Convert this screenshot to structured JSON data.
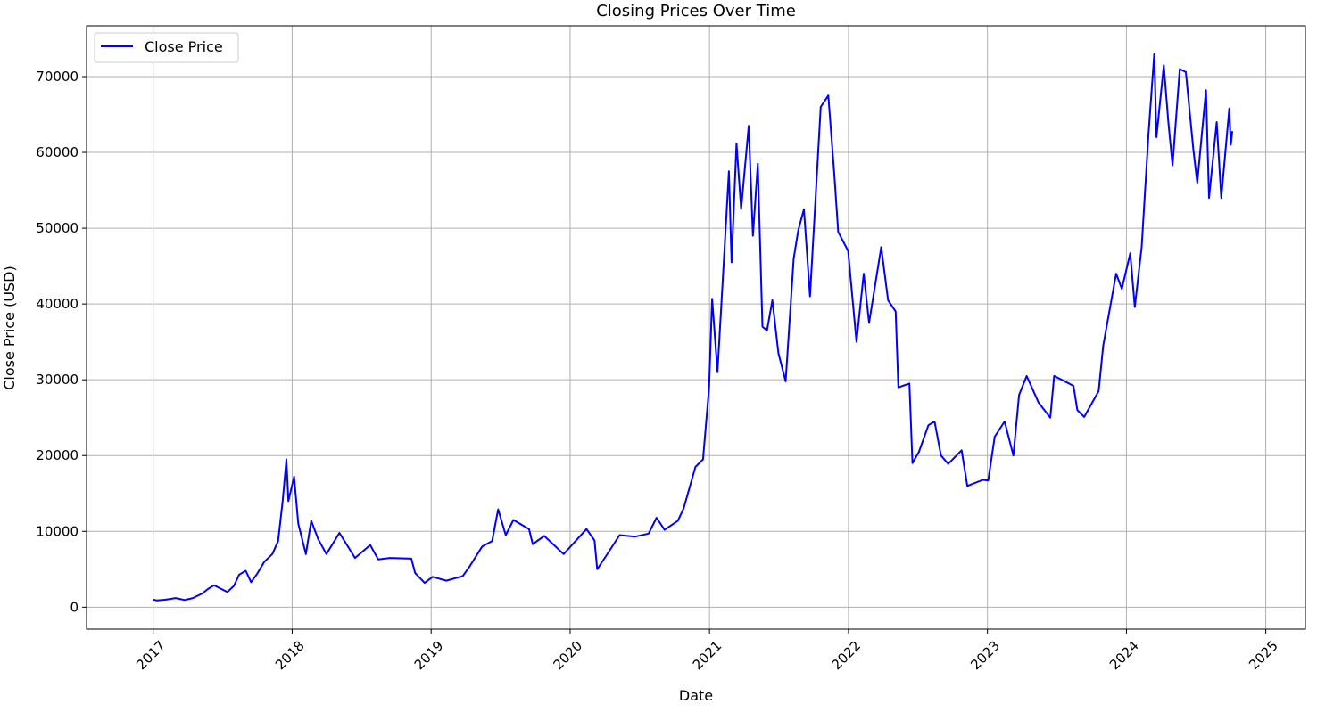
{
  "chart_data": {
    "type": "line",
    "title": "Closing Prices Over Time",
    "xlabel": "Date",
    "ylabel": "Close Price (USD)",
    "x_range": [
      "2016-07-10",
      "2025-04-15"
    ],
    "ylim": [
      -2900,
      76700
    ],
    "xticks": [
      "2017",
      "2018",
      "2019",
      "2020",
      "2021",
      "2022",
      "2023",
      "2024",
      "2025"
    ],
    "yticks": [
      0,
      10000,
      20000,
      30000,
      40000,
      50000,
      60000,
      70000
    ],
    "grid": true,
    "legend_position": "upper-left",
    "series": [
      {
        "name": "Close Price",
        "color": "#0000ff",
        "points": [
          [
            "2017-01-01",
            1000
          ],
          [
            "2017-01-10",
            900
          ],
          [
            "2017-02-01",
            980
          ],
          [
            "2017-03-01",
            1200
          ],
          [
            "2017-03-25",
            950
          ],
          [
            "2017-04-15",
            1200
          ],
          [
            "2017-05-10",
            1800
          ],
          [
            "2017-05-25",
            2400
          ],
          [
            "2017-06-10",
            2900
          ],
          [
            "2017-06-25",
            2500
          ],
          [
            "2017-07-15",
            2000
          ],
          [
            "2017-08-01",
            2800
          ],
          [
            "2017-08-15",
            4300
          ],
          [
            "2017-09-01",
            4800
          ],
          [
            "2017-09-15",
            3300
          ],
          [
            "2017-10-01",
            4400
          ],
          [
            "2017-10-20",
            6000
          ],
          [
            "2017-11-10",
            7000
          ],
          [
            "2017-11-25",
            8700
          ],
          [
            "2017-12-07",
            14000
          ],
          [
            "2017-12-17",
            19500
          ],
          [
            "2017-12-22",
            14000
          ],
          [
            "2018-01-06",
            17200
          ],
          [
            "2018-01-17",
            11000
          ],
          [
            "2018-02-06",
            7000
          ],
          [
            "2018-02-20",
            11400
          ],
          [
            "2018-03-10",
            9000
          ],
          [
            "2018-04-01",
            7000
          ],
          [
            "2018-05-05",
            9800
          ],
          [
            "2018-06-15",
            6500
          ],
          [
            "2018-07-25",
            8200
          ],
          [
            "2018-08-15",
            6300
          ],
          [
            "2018-09-15",
            6500
          ],
          [
            "2018-11-10",
            6400
          ],
          [
            "2018-11-20",
            4500
          ],
          [
            "2018-12-15",
            3200
          ],
          [
            "2019-01-05",
            4000
          ],
          [
            "2019-02-10",
            3500
          ],
          [
            "2019-03-25",
            4100
          ],
          [
            "2019-04-10",
            5200
          ],
          [
            "2019-05-15",
            8000
          ],
          [
            "2019-06-10",
            8700
          ],
          [
            "2019-06-26",
            12900
          ],
          [
            "2019-07-16",
            9500
          ],
          [
            "2019-08-05",
            11500
          ],
          [
            "2019-09-15",
            10300
          ],
          [
            "2019-09-25",
            8300
          ],
          [
            "2019-10-25",
            9400
          ],
          [
            "2019-12-15",
            7000
          ],
          [
            "2020-01-15",
            8700
          ],
          [
            "2020-02-13",
            10300
          ],
          [
            "2020-03-05",
            8800
          ],
          [
            "2020-03-12",
            5000
          ],
          [
            "2020-04-05",
            6800
          ],
          [
            "2020-05-10",
            9500
          ],
          [
            "2020-06-20",
            9300
          ],
          [
            "2020-07-25",
            9700
          ],
          [
            "2020-08-15",
            11800
          ],
          [
            "2020-09-05",
            10200
          ],
          [
            "2020-10-10",
            11400
          ],
          [
            "2020-10-25",
            13000
          ],
          [
            "2020-11-25",
            18500
          ],
          [
            "2020-12-15",
            19500
          ],
          [
            "2020-12-31",
            29000
          ],
          [
            "2021-01-08",
            40700
          ],
          [
            "2021-01-22",
            31000
          ],
          [
            "2021-02-08",
            46000
          ],
          [
            "2021-02-21",
            57500
          ],
          [
            "2021-02-28",
            45500
          ],
          [
            "2021-03-13",
            61200
          ],
          [
            "2021-03-25",
            52500
          ],
          [
            "2021-04-14",
            63500
          ],
          [
            "2021-04-25",
            49000
          ],
          [
            "2021-05-08",
            58500
          ],
          [
            "2021-05-20",
            37000
          ],
          [
            "2021-06-01",
            36500
          ],
          [
            "2021-06-15",
            40500
          ],
          [
            "2021-07-01",
            33500
          ],
          [
            "2021-07-20",
            29800
          ],
          [
            "2021-08-10",
            46000
          ],
          [
            "2021-08-22",
            49700
          ],
          [
            "2021-09-06",
            52500
          ],
          [
            "2021-09-22",
            41000
          ],
          [
            "2021-10-20",
            66000
          ],
          [
            "2021-11-09",
            67500
          ],
          [
            "2021-11-25",
            57000
          ],
          [
            "2021-12-05",
            49500
          ],
          [
            "2021-12-31",
            47000
          ],
          [
            "2022-01-22",
            35000
          ],
          [
            "2022-02-10",
            44000
          ],
          [
            "2022-02-24",
            37500
          ],
          [
            "2022-03-28",
            47500
          ],
          [
            "2022-04-15",
            40500
          ],
          [
            "2022-05-05",
            39000
          ],
          [
            "2022-05-12",
            29000
          ],
          [
            "2022-06-10",
            29500
          ],
          [
            "2022-06-18",
            19000
          ],
          [
            "2022-07-05",
            20500
          ],
          [
            "2022-07-30",
            24000
          ],
          [
            "2022-08-15",
            24500
          ],
          [
            "2022-09-01",
            20000
          ],
          [
            "2022-09-20",
            18900
          ],
          [
            "2022-10-25",
            20700
          ],
          [
            "2022-11-09",
            16000
          ],
          [
            "2022-12-20",
            16800
          ],
          [
            "2023-01-03",
            16700
          ],
          [
            "2023-01-20",
            22500
          ],
          [
            "2023-02-15",
            24500
          ],
          [
            "2023-03-10",
            20000
          ],
          [
            "2023-03-25",
            28000
          ],
          [
            "2023-04-14",
            30500
          ],
          [
            "2023-05-15",
            27000
          ],
          [
            "2023-06-15",
            25000
          ],
          [
            "2023-06-25",
            30500
          ],
          [
            "2023-07-15",
            30000
          ],
          [
            "2023-08-15",
            29200
          ],
          [
            "2023-08-25",
            26000
          ],
          [
            "2023-09-12",
            25100
          ],
          [
            "2023-10-20",
            28500
          ],
          [
            "2023-11-01",
            34500
          ],
          [
            "2023-12-05",
            44000
          ],
          [
            "2023-12-20",
            42000
          ],
          [
            "2024-01-11",
            46700
          ],
          [
            "2024-01-23",
            39600
          ],
          [
            "2024-02-10",
            47500
          ],
          [
            "2024-02-28",
            62500
          ],
          [
            "2024-03-14",
            73000
          ],
          [
            "2024-03-20",
            62000
          ],
          [
            "2024-04-08",
            71500
          ],
          [
            "2024-04-20",
            64000
          ],
          [
            "2024-05-01",
            58300
          ],
          [
            "2024-05-20",
            71000
          ],
          [
            "2024-06-05",
            70600
          ],
          [
            "2024-06-25",
            60300
          ],
          [
            "2024-07-05",
            56000
          ],
          [
            "2024-07-28",
            68200
          ],
          [
            "2024-08-05",
            54000
          ],
          [
            "2024-08-25",
            64000
          ],
          [
            "2024-09-06",
            54000
          ],
          [
            "2024-09-27",
            65800
          ],
          [
            "2024-10-01",
            61000
          ],
          [
            "2024-10-05",
            62800
          ]
        ]
      }
    ]
  }
}
